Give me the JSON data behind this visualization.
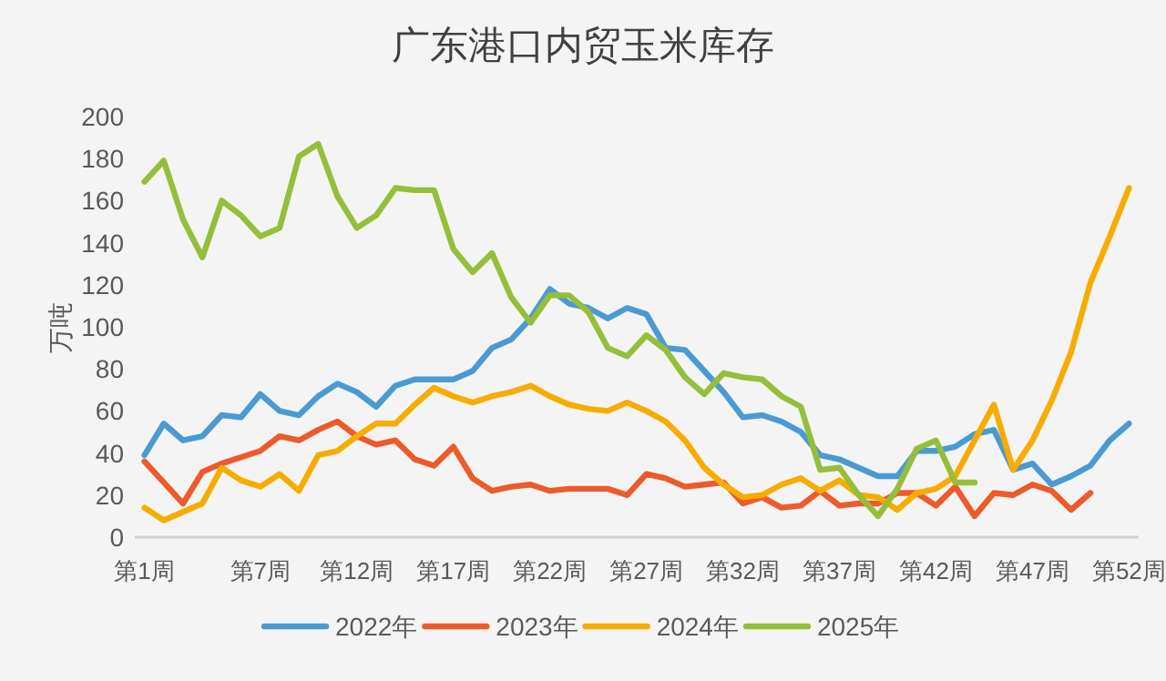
{
  "chart_data": {
    "type": "line",
    "title": "广东港口内贸玉米库存",
    "ylabel": "万吨",
    "categories": [
      "第1周",
      null,
      null,
      null,
      null,
      null,
      "第7周",
      null,
      null,
      null,
      null,
      "第12周",
      null,
      null,
      null,
      null,
      "第17周",
      null,
      null,
      null,
      null,
      "第22周",
      null,
      null,
      null,
      null,
      "第27周",
      null,
      null,
      null,
      null,
      "第32周",
      null,
      null,
      null,
      null,
      "第37周",
      null,
      null,
      null,
      null,
      "第42周",
      null,
      null,
      null,
      null,
      "第47周",
      null,
      null,
      null,
      null,
      "第52周"
    ],
    "series": [
      {
        "name": "2022年",
        "color": "#4a9bd3",
        "values": [
          39,
          54,
          46,
          48,
          58,
          57,
          68,
          60,
          58,
          67,
          73,
          69,
          62,
          72,
          75,
          75,
          75,
          79,
          90,
          94,
          104,
          118,
          111,
          109,
          104,
          109,
          106,
          90,
          89,
          79,
          69,
          57,
          58,
          55,
          50,
          39,
          37,
          33,
          29,
          29,
          41,
          41,
          43,
          49,
          51,
          32,
          35,
          25,
          29,
          34,
          46,
          54
        ]
      },
      {
        "name": "2023年",
        "color": "#ee5a2a",
        "values": [
          36,
          26,
          16,
          31,
          35,
          38,
          41,
          48,
          46,
          51,
          55,
          48,
          44,
          46,
          37,
          34,
          43,
          28,
          22,
          24,
          25,
          22,
          23,
          23,
          23,
          20,
          30,
          28,
          24,
          25,
          26,
          16,
          19,
          14,
          15,
          22,
          15,
          16,
          16,
          21,
          21,
          15,
          24,
          10,
          21,
          20,
          25,
          22,
          13,
          21,
          null,
          null
        ]
      },
      {
        "name": "2024年",
        "color": "#f8ac00",
        "values": [
          14,
          8,
          12,
          16,
          33,
          27,
          24,
          30,
          22,
          39,
          41,
          48,
          54,
          54,
          63,
          71,
          67,
          64,
          67,
          69,
          72,
          67,
          63,
          61,
          60,
          64,
          60,
          55,
          46,
          33,
          25,
          19,
          20,
          25,
          28,
          22,
          27,
          20,
          19,
          13,
          21,
          23,
          29,
          46,
          63,
          32,
          46,
          65,
          88,
          121,
          143,
          166
        ]
      },
      {
        "name": "2025年",
        "color": "#95bf3a",
        "values": [
          169,
          179,
          151,
          133,
          160,
          153,
          143,
          147,
          181,
          187,
          162,
          147,
          153,
          166,
          165,
          165,
          137,
          126,
          135,
          114,
          102,
          115,
          115,
          107,
          90,
          86,
          96,
          89,
          76,
          68,
          78,
          76,
          75,
          67,
          62,
          32,
          33,
          20,
          10,
          23,
          42,
          46,
          26,
          26,
          null,
          null,
          null,
          null,
          null,
          null,
          null,
          null
        ]
      }
    ],
    "ylim": [
      0,
      200
    ],
    "yticks": [
      0,
      20,
      40,
      60,
      80,
      100,
      120,
      140,
      160,
      180,
      200
    ],
    "legend": "bottom"
  }
}
